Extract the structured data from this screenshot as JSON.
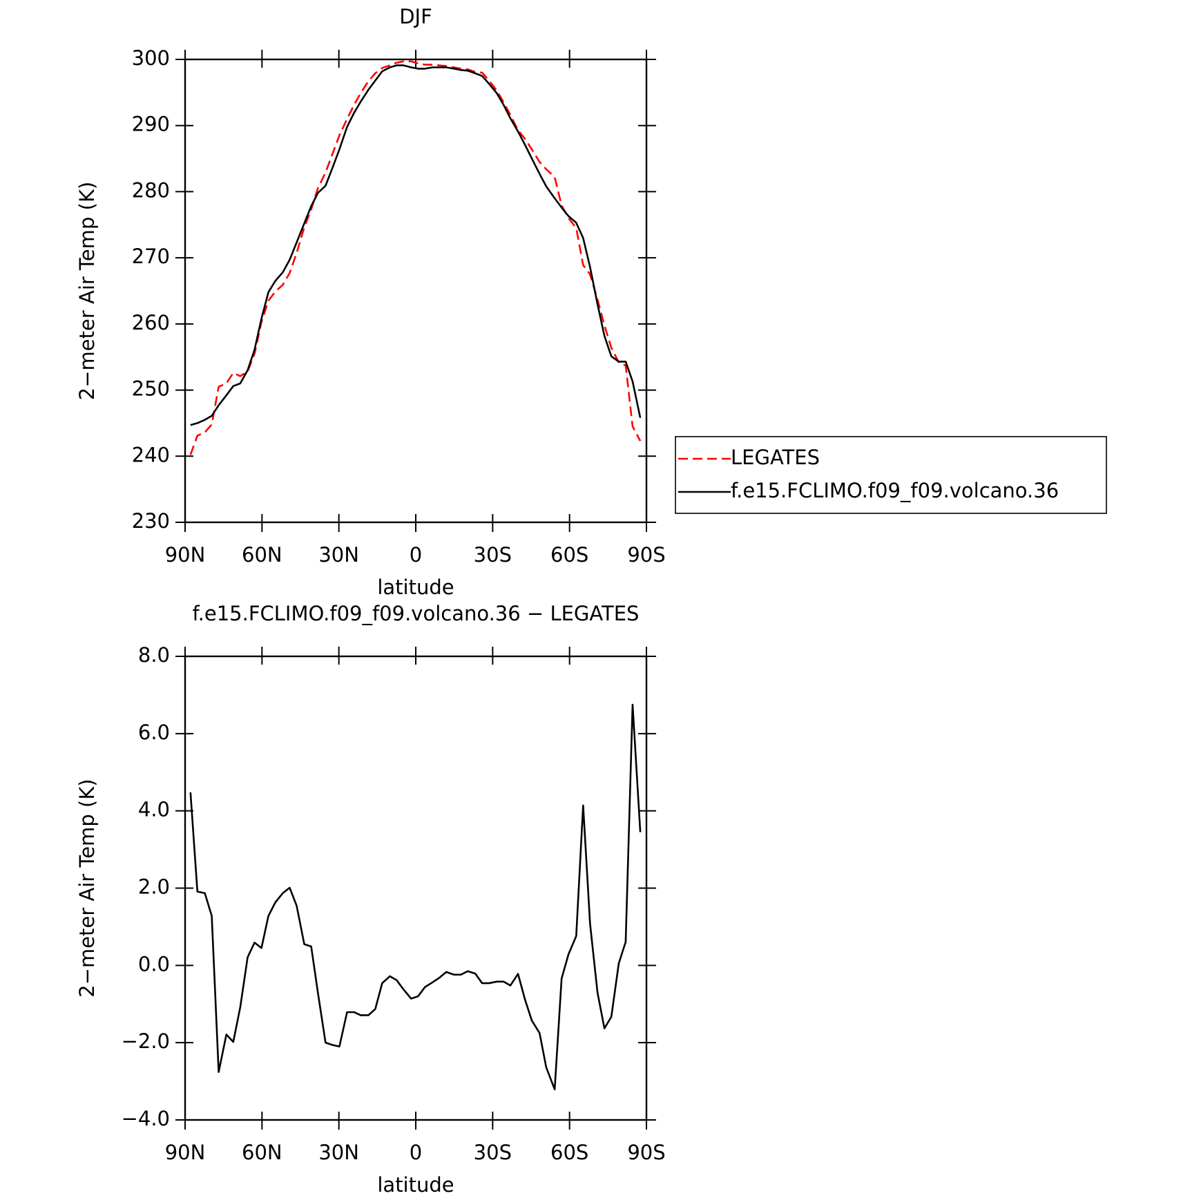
{
  "chart_data": [
    {
      "type": "line",
      "title": "DJF",
      "x_label": "latitude",
      "y_label": "2−meter Air Temp (K)",
      "x": [
        87.9,
        85.2,
        82.3,
        79.6,
        76.9,
        73.9,
        71.2,
        68.5,
        65.6,
        62.9,
        60.2,
        57.5,
        54.8,
        51.9,
        49.2,
        46.5,
        43.5,
        40.8,
        38.2,
        35.2,
        32.5,
        29.8,
        26.8,
        24.1,
        21.5,
        18.5,
        15.8,
        13.1,
        10.1,
        7.5,
        4.8,
        1.8,
        -0.9,
        -3.6,
        -6.5,
        -9.2,
        -11.9,
        -14.9,
        -17.6,
        -20.3,
        -23.2,
        -25.9,
        -28.6,
        -31.6,
        -34.3,
        -36.9,
        -39.9,
        -42.6,
        -45.3,
        -48.3,
        -50.9,
        -54.2,
        -56.9,
        -59.6,
        -62.6,
        -65.3,
        -68.0,
        -70.9,
        -73.6,
        -76.3,
        -79.2,
        -81.9,
        -84.6,
        -87.6
      ],
      "series": [
        {
          "name": "LEGATES",
          "color": "#ff0000",
          "line_style": "dashed",
          "values": [
            240.2,
            243.1,
            243.6,
            244.8,
            250.5,
            251.0,
            252.6,
            252.1,
            252.8,
            255.5,
            260.3,
            263.5,
            264.9,
            265.9,
            267.7,
            270.7,
            274.6,
            277.3,
            280.5,
            282.9,
            285.7,
            288.5,
            291.0,
            293.1,
            294.9,
            296.7,
            297.9,
            298.7,
            299.1,
            299.5,
            299.7,
            299.7,
            299.4,
            299.2,
            299.2,
            299.1,
            299.0,
            298.8,
            298.6,
            298.5,
            298.1,
            298.0,
            296.8,
            295.3,
            293.5,
            291.6,
            289.3,
            288.0,
            286.4,
            284.5,
            283.4,
            282.2,
            277.9,
            276.0,
            274.5,
            268.9,
            267.5,
            263.7,
            259.8,
            256.4,
            254.2,
            253.7,
            244.5,
            242.3
          ]
        },
        {
          "name": "f.e15.FCLIMO.f09_f09.volcano.36",
          "color": "#000000",
          "line_style": "solid",
          "values": [
            244.7,
            245.0,
            245.5,
            246.1,
            247.7,
            249.2,
            250.6,
            251.0,
            253.0,
            256.1,
            260.8,
            264.8,
            266.5,
            267.8,
            269.7,
            272.3,
            275.2,
            277.8,
            279.8,
            280.9,
            283.6,
            286.4,
            289.8,
            291.9,
            293.6,
            295.4,
            296.8,
            298.2,
            298.8,
            299.1,
            299.1,
            298.8,
            298.6,
            298.6,
            298.8,
            298.8,
            298.8,
            298.6,
            298.4,
            298.3,
            297.9,
            297.5,
            296.3,
            294.9,
            293.1,
            291.1,
            289.1,
            287.1,
            285.0,
            282.7,
            280.8,
            279.0,
            277.6,
            276.3,
            275.3,
            273.0,
            268.6,
            263.0,
            258.2,
            255.1,
            254.3,
            254.3,
            251.3,
            245.8
          ]
        }
      ],
      "xlim": [
        90,
        -90
      ],
      "xticks": [
        {
          "value": 90,
          "label": "90N"
        },
        {
          "value": 60,
          "label": "60N"
        },
        {
          "value": 30,
          "label": "30N"
        },
        0,
        {
          "value": -30,
          "label": "30S"
        },
        {
          "value": -60,
          "label": "60S"
        },
        {
          "value": -90,
          "label": "90S"
        }
      ],
      "ylim": [
        230,
        300
      ],
      "yticks": [
        230,
        240,
        250,
        260,
        270,
        280,
        290,
        300
      ],
      "legend": "right"
    },
    {
      "type": "line",
      "title": "f.e15.FCLIMO.f09_f09.volcano.36 − LEGATES",
      "x_label": "latitude",
      "y_label": "2−meter Air Temp (K)",
      "x": [
        87.9,
        85.2,
        82.3,
        79.6,
        76.9,
        73.9,
        71.2,
        68.5,
        65.6,
        62.9,
        60.2,
        57.5,
        54.8,
        51.9,
        49.2,
        46.5,
        43.5,
        40.8,
        38.2,
        35.2,
        32.5,
        29.8,
        26.8,
        24.1,
        21.5,
        18.5,
        15.8,
        13.1,
        10.1,
        7.5,
        4.8,
        1.8,
        -0.9,
        -3.6,
        -6.5,
        -9.2,
        -11.9,
        -14.9,
        -17.6,
        -20.3,
        -23.2,
        -25.9,
        -28.6,
        -31.6,
        -34.3,
        -36.9,
        -39.9,
        -42.6,
        -45.3,
        -48.3,
        -50.9,
        -54.2,
        -56.9,
        -59.6,
        -62.6,
        -65.3,
        -68.0,
        -70.9,
        -73.6,
        -76.3,
        -79.2,
        -81.9,
        -84.6,
        -87.6
      ],
      "color": "#000000",
      "values": [
        4.48,
        1.91,
        1.87,
        1.28,
        -2.76,
        -1.79,
        -1.98,
        -1.09,
        0.21,
        0.59,
        0.45,
        1.28,
        1.63,
        1.87,
        2.01,
        1.55,
        0.55,
        0.49,
        -0.7,
        -2.0,
        -2.06,
        -2.1,
        -1.21,
        -1.21,
        -1.29,
        -1.29,
        -1.13,
        -0.46,
        -0.28,
        -0.38,
        -0.62,
        -0.86,
        -0.8,
        -0.56,
        -0.44,
        -0.32,
        -0.17,
        -0.24,
        -0.24,
        -0.15,
        -0.21,
        -0.46,
        -0.46,
        -0.42,
        -0.42,
        -0.52,
        -0.22,
        -0.88,
        -1.43,
        -1.75,
        -2.64,
        -3.21,
        -0.34,
        0.29,
        0.76,
        4.14,
        1.08,
        -0.7,
        -1.63,
        -1.33,
        0.05,
        0.61,
        6.75,
        3.45
      ],
      "xlim": [
        90,
        -90
      ],
      "xticks": [
        {
          "value": 90,
          "label": "90N"
        },
        {
          "value": 60,
          "label": "60N"
        },
        {
          "value": 30,
          "label": "30N"
        },
        0,
        {
          "value": -30,
          "label": "30S"
        },
        {
          "value": -60,
          "label": "60S"
        },
        {
          "value": -90,
          "label": "90S"
        }
      ],
      "ylim": [
        -4,
        8
      ],
      "yticks": [
        {
          "value": -4,
          "label": "−4.0"
        },
        {
          "value": -2,
          "label": "−2.0"
        },
        {
          "value": 0,
          "label": "0.0"
        },
        {
          "value": 2,
          "label": "2.0"
        },
        {
          "value": 4,
          "label": "4.0"
        },
        {
          "value": 6,
          "label": "6.0"
        },
        {
          "value": 8,
          "label": "8.0"
        }
      ]
    }
  ]
}
